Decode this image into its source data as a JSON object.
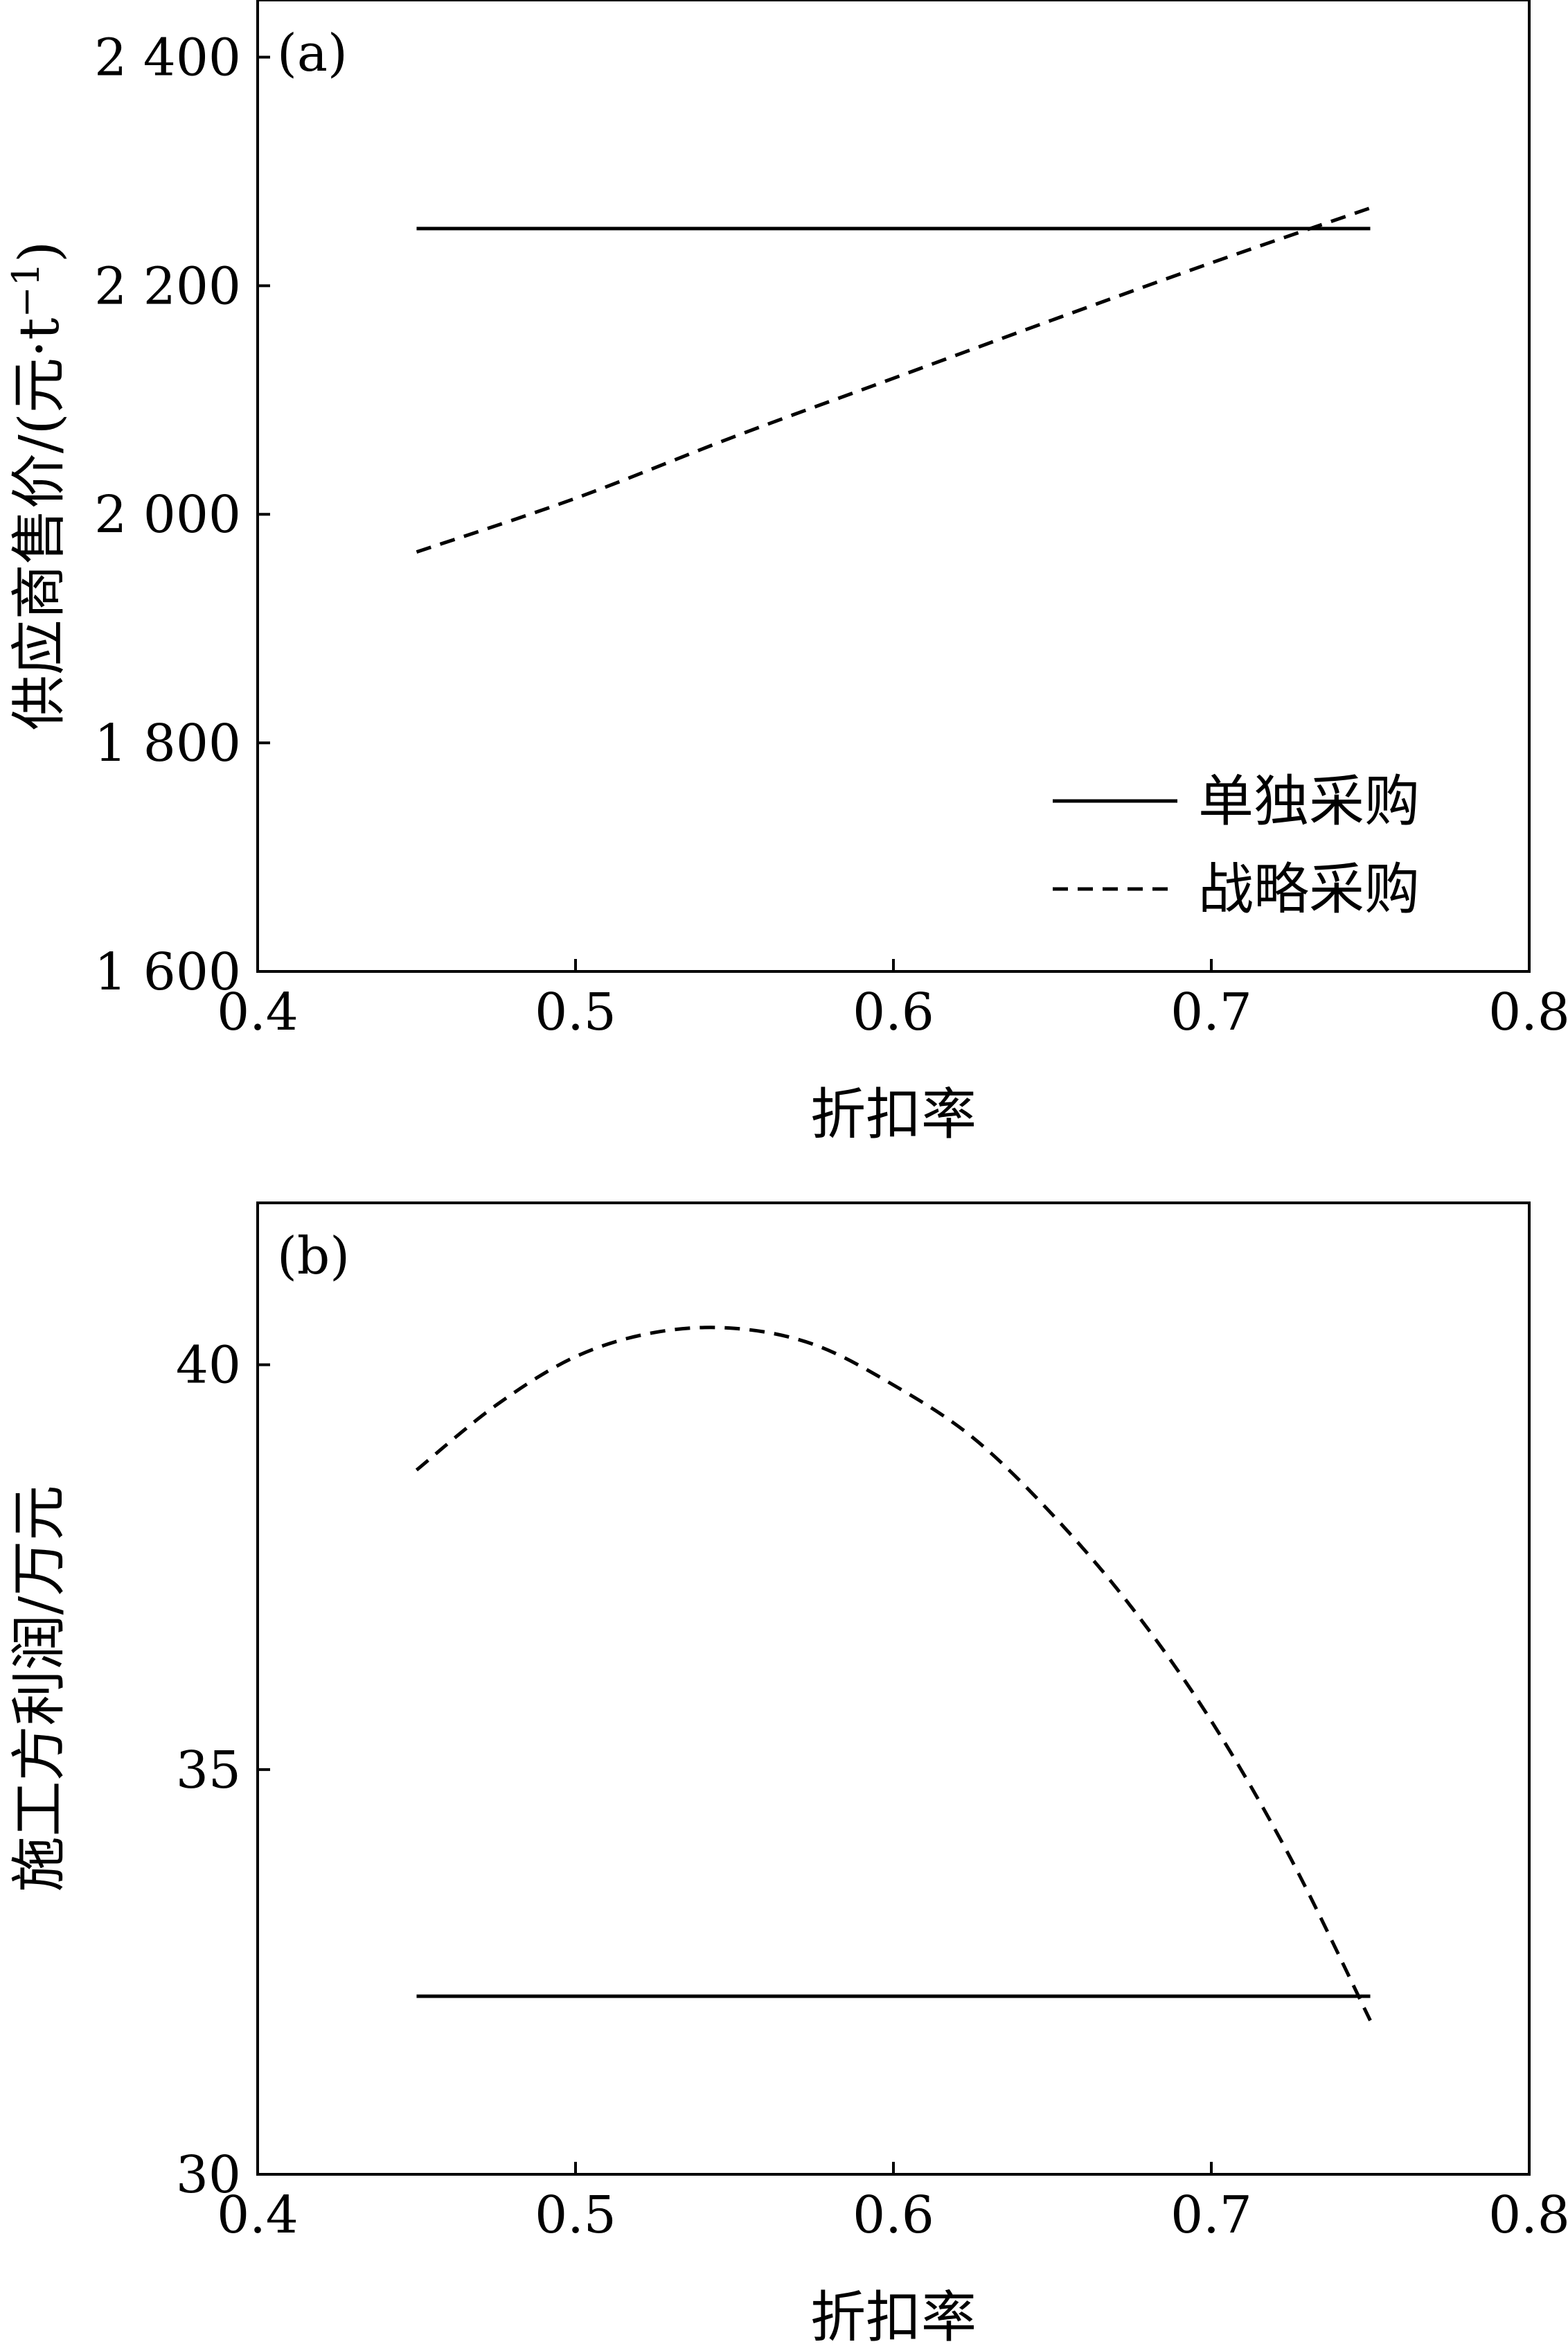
{
  "charts": [
    {
      "panel_label": "(a)",
      "type": "line",
      "xlabel": "折扣率",
      "ylabel_main": "供应商售价/(元·t",
      "ylabel_sup": "−1",
      "ylabel_close": ")",
      "xlim": [
        0.4,
        0.8
      ],
      "ylim": [
        1600,
        2450
      ],
      "xticks": [
        0.4,
        0.5,
        0.6,
        0.7,
        0.8
      ],
      "xtick_labels": [
        "0.4",
        "0.5",
        "0.6",
        "0.7",
        "0.8"
      ],
      "yticks": [
        1600,
        1800,
        2000,
        2200,
        2400
      ],
      "ytick_labels": [
        "1 600",
        "1 800",
        "2 000",
        "2 200",
        "2 400"
      ],
      "legend_position": "lower-right",
      "series": [
        {
          "name": "单独采购",
          "style": "solid",
          "x": [
            0.45,
            0.75
          ],
          "y": [
            2250,
            2250
          ]
        },
        {
          "name": "战略采购",
          "style": "dashed",
          "x": [
            0.45,
            0.5,
            0.55,
            0.6,
            0.65,
            0.7,
            0.75
          ],
          "y": [
            1967,
            2014,
            2068,
            2119,
            2170,
            2220,
            2268
          ]
        }
      ]
    },
    {
      "panel_label": "(b)",
      "type": "line",
      "xlabel": "折扣率",
      "ylabel_main": "施工方利润/万元",
      "ylabel_sup": "",
      "ylabel_close": "",
      "xlim": [
        0.4,
        0.8
      ],
      "ylim": [
        30,
        42
      ],
      "xticks": [
        0.4,
        0.5,
        0.6,
        0.7,
        0.8
      ],
      "xtick_labels": [
        "0.4",
        "0.5",
        "0.6",
        "0.7",
        "0.8"
      ],
      "yticks": [
        30,
        35,
        40
      ],
      "ytick_labels": [
        "30",
        "35",
        "40"
      ],
      "legend_position": "none",
      "series": [
        {
          "name": "单独采购",
          "style": "solid",
          "x": [
            0.45,
            0.75
          ],
          "y": [
            32.2,
            32.2
          ]
        },
        {
          "name": "战略采购",
          "style": "dashed",
          "x": [
            0.45,
            0.475,
            0.5,
            0.525,
            0.55,
            0.575,
            0.6,
            0.625,
            0.65,
            0.675,
            0.7,
            0.725,
            0.75
          ],
          "y": [
            38.7,
            39.5,
            40.1,
            40.4,
            40.45,
            40.25,
            39.75,
            39.1,
            38.15,
            37.0,
            35.6,
            33.9,
            31.9
          ]
        }
      ]
    }
  ]
}
